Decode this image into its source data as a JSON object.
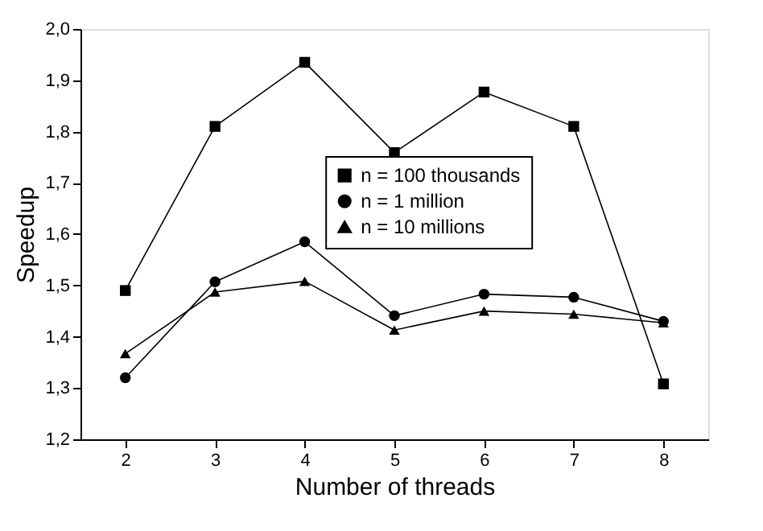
{
  "chart_data": {
    "type": "line",
    "xlabel": "Number of threads",
    "ylabel": "Speedup",
    "x": [
      2,
      3,
      4,
      5,
      6,
      7,
      8
    ],
    "series": [
      {
        "name": "n = 100 thousands",
        "color": "#000000",
        "marker": "square",
        "values": [
          1.49,
          1.81,
          1.935,
          1.759,
          1.877,
          1.81,
          1.308
        ]
      },
      {
        "name": "n = 1 million",
        "color": "#000000",
        "marker": "circle",
        "values": [
          1.32,
          1.507,
          1.585,
          1.441,
          1.483,
          1.477,
          1.43
        ]
      },
      {
        "name": "n = 10 millions",
        "color": "#000000",
        "marker": "triangle",
        "values": [
          1.367,
          1.487,
          1.508,
          1.413,
          1.45,
          1.444,
          1.427
        ]
      }
    ],
    "xlim": [
      1.5,
      8.5
    ],
    "xticks": [
      2,
      3,
      4,
      5,
      6,
      7,
      8
    ],
    "ylim": [
      1.2,
      2.0
    ],
    "yticks": [
      {
        "value": 1.2,
        "label": "1,2"
      },
      {
        "value": 1.3,
        "label": "1,3"
      },
      {
        "value": 1.4,
        "label": "1,4"
      },
      {
        "value": 1.5,
        "label": "1,5"
      },
      {
        "value": 1.6,
        "label": "1,6"
      },
      {
        "value": 1.7,
        "label": "1,7"
      },
      {
        "value": 1.8,
        "label": "1,8"
      },
      {
        "value": 1.9,
        "label": "1,9"
      },
      {
        "value": 2.0,
        "label": "2,0"
      }
    ],
    "grid": false,
    "legend": "right",
    "line_style": "solid"
  }
}
